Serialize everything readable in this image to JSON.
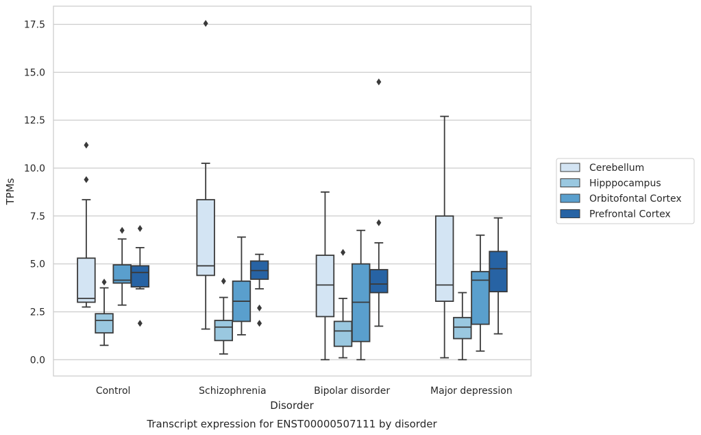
{
  "chart_data": {
    "type": "boxplot",
    "caption": "Transcript expression for ENST00000507111 by disorder",
    "xlabel": "Disorder",
    "ylabel": "TPMs",
    "ylim": [
      -0.85,
      18.45
    ],
    "yticks": [
      0.0,
      2.5,
      5.0,
      7.5,
      10.0,
      12.5,
      15.0,
      17.5
    ],
    "ytick_labels": [
      "0.0",
      "2.5",
      "5.0",
      "7.5",
      "10.0",
      "12.5",
      "15.0",
      "17.5"
    ],
    "grid": true,
    "legend_position": "outside-right",
    "categories": [
      "Control",
      "Schizophrenia",
      "Bipolar disorder",
      "Major depression"
    ],
    "series": [
      {
        "name": "Cerebellum",
        "color": "#d3e4f3",
        "boxes": [
          {
            "whislo": 2.75,
            "q1": 3.0,
            "med": 3.2,
            "q3": 5.3,
            "whishi": 8.35,
            "fliers": [
              9.4,
              11.2
            ]
          },
          {
            "whislo": 1.6,
            "q1": 4.4,
            "med": 4.9,
            "q3": 8.35,
            "whishi": 10.25,
            "fliers": [
              17.55
            ]
          },
          {
            "whislo": 0.0,
            "q1": 2.25,
            "med": 3.9,
            "q3": 5.45,
            "whishi": 8.75,
            "fliers": []
          },
          {
            "whislo": 0.1,
            "q1": 3.05,
            "med": 3.9,
            "q3": 7.5,
            "whishi": 12.7,
            "fliers": []
          }
        ]
      },
      {
        "name": "Hipppocampus",
        "color": "#9ac8e0",
        "boxes": [
          {
            "whislo": 0.75,
            "q1": 1.4,
            "med": 2.05,
            "q3": 2.4,
            "whishi": 3.75,
            "fliers": [
              4.05
            ]
          },
          {
            "whislo": 0.3,
            "q1": 1.0,
            "med": 1.7,
            "q3": 2.05,
            "whishi": 3.25,
            "fliers": [
              4.1
            ]
          },
          {
            "whislo": 0.1,
            "q1": 0.7,
            "med": 1.5,
            "q3": 2.0,
            "whishi": 3.2,
            "fliers": [
              5.6
            ]
          },
          {
            "whislo": 0.0,
            "q1": 1.1,
            "med": 1.7,
            "q3": 2.2,
            "whishi": 3.5,
            "fliers": []
          }
        ]
      },
      {
        "name": "Orbitofontal Cortex",
        "color": "#5a9fcd",
        "boxes": [
          {
            "whislo": 2.85,
            "q1": 4.0,
            "med": 4.15,
            "q3": 4.95,
            "whishi": 6.3,
            "fliers": [
              6.75
            ]
          },
          {
            "whislo": 1.3,
            "q1": 2.0,
            "med": 3.05,
            "q3": 4.1,
            "whishi": 6.4,
            "fliers": []
          },
          {
            "whislo": 0.0,
            "q1": 0.95,
            "med": 3.0,
            "q3": 5.0,
            "whishi": 6.75,
            "fliers": []
          },
          {
            "whislo": 0.45,
            "q1": 1.85,
            "med": 4.15,
            "q3": 4.6,
            "whishi": 6.5,
            "fliers": []
          }
        ]
      },
      {
        "name": "Prefrontal Cortex",
        "color": "#2763a4",
        "boxes": [
          {
            "whislo": 3.7,
            "q1": 3.8,
            "med": 4.55,
            "q3": 4.9,
            "whishi": 5.85,
            "fliers": [
              1.9,
              6.85
            ]
          },
          {
            "whislo": 3.7,
            "q1": 4.2,
            "med": 4.65,
            "q3": 5.15,
            "whishi": 5.5,
            "fliers": [
              1.9,
              2.7
            ]
          },
          {
            "whislo": 1.75,
            "q1": 3.5,
            "med": 3.95,
            "q3": 4.7,
            "whishi": 6.1,
            "fliers": [
              7.15,
              14.5
            ]
          },
          {
            "whislo": 1.35,
            "q1": 3.55,
            "med": 4.75,
            "q3": 5.65,
            "whishi": 7.4,
            "fliers": []
          }
        ]
      }
    ]
  }
}
